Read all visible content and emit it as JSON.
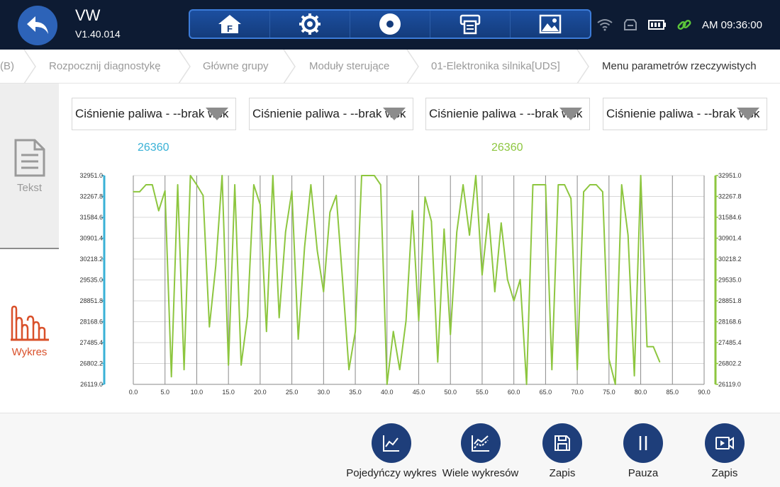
{
  "header": {
    "brand": "VW",
    "version": "V1.40.014",
    "clock": "AM 09:36:00",
    "nav_icons": [
      "home-f-icon",
      "gear-icon",
      "record-icon",
      "printer-icon",
      "image-icon"
    ]
  },
  "breadcrumb": [
    "(B)",
    "Rozpocznij diagnostykę",
    "Główne grupy",
    "Moduły sterujące",
    "01-Elektronika silnika[UDS]",
    "Menu parametrów rzeczywistych"
  ],
  "sidebar": {
    "text_label": "Tekst",
    "chart_label": "Wykres"
  },
  "selectors": [
    "Ciśnienie paliwa - --brak wsk",
    "Ciśnienie paliwa - --brak wsk",
    "Ciśnienie paliwa - --brak wsk",
    "Ciśnienie paliwa - --brak wsk"
  ],
  "readouts": {
    "left": "26360",
    "right": "26360"
  },
  "colors": {
    "left_axis": "#39b1d6",
    "series": "#8dc63f",
    "accent": "#d9502a",
    "topbar": "#0d1b33",
    "button": "#1e3e7a"
  },
  "chart_data": {
    "type": "line",
    "xlim": [
      0,
      90
    ],
    "ylim": [
      26119.0,
      32951.0
    ],
    "x_ticks": [
      "0.0",
      "5.0",
      "10.0",
      "15.0",
      "20.0",
      "25.0",
      "30.0",
      "35.0",
      "40.0",
      "45.0",
      "50.0",
      "55.0",
      "60.0",
      "65.0",
      "70.0",
      "75.0",
      "80.0",
      "85.0",
      "90.0"
    ],
    "y_ticks": [
      "26119.0",
      "26802.2",
      "27485.4",
      "28168.6",
      "28851.8",
      "29535.0",
      "30218.2",
      "30901.4",
      "31584.6",
      "32267.8",
      "32951.0"
    ],
    "grid": true,
    "series": [
      {
        "x": [
          0,
          1,
          2,
          3,
          4,
          5,
          6,
          7,
          8,
          9,
          10,
          11,
          12,
          13,
          14,
          15,
          16,
          17,
          18,
          19,
          20,
          21,
          22,
          23,
          24,
          25,
          26,
          27,
          28,
          29,
          30,
          31,
          32,
          33,
          34,
          35,
          36,
          37,
          38,
          39,
          40,
          41,
          42,
          43,
          44,
          45,
          46,
          47,
          48,
          49,
          50,
          51,
          52,
          53,
          54,
          55,
          56,
          57,
          58,
          59,
          60,
          61,
          62,
          63,
          64,
          65,
          66,
          67,
          68,
          69,
          70,
          71,
          72,
          73,
          74,
          75,
          76,
          77,
          78,
          79,
          80,
          81,
          82,
          83
        ],
        "y": [
          32420,
          32420,
          32650,
          32650,
          31800,
          32450,
          26370,
          32650,
          26600,
          32951,
          32650,
          32300,
          28000,
          30000,
          32951,
          26750,
          32650,
          26750,
          28350,
          32650,
          32000,
          27850,
          32951,
          28300,
          31100,
          32450,
          27600,
          30600,
          32650,
          30500,
          29150,
          31750,
          32300,
          29500,
          26600,
          27850,
          32951,
          32951,
          32951,
          32650,
          26119,
          27850,
          26600,
          28200,
          31800,
          28200,
          32250,
          31450,
          26850,
          31200,
          27750,
          31100,
          32650,
          31000,
          32951,
          29700,
          31700,
          29150,
          31400,
          29550,
          28850,
          29550,
          26119,
          32650,
          32650,
          32650,
          26600,
          32650,
          32650,
          32200,
          26600,
          32420,
          32650,
          32650,
          32420,
          26950,
          26119,
          32650,
          31000,
          26400,
          32951,
          27350,
          27350,
          26850
        ]
      }
    ]
  },
  "actions": [
    {
      "label": "Pojedyńczy wykres",
      "icon": "single-chart-icon"
    },
    {
      "label": "Wiele wykresów",
      "icon": "multi-chart-icon"
    },
    {
      "label": "Zapis",
      "icon": "save-icon"
    },
    {
      "label": "Pauza",
      "icon": "pause-icon"
    },
    {
      "label": "Zapis",
      "icon": "video-record-icon"
    }
  ]
}
